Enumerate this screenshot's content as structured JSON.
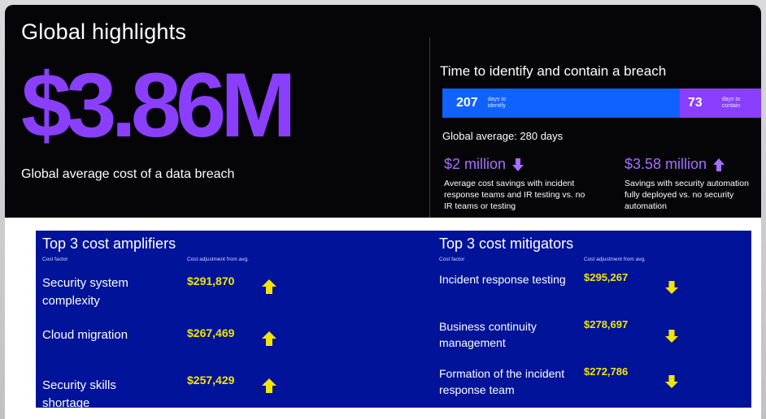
{
  "left": {
    "title": "Global highlights",
    "big_value": "$3.86M",
    "big_label": "Global average cost of a data breach"
  },
  "breach_time": {
    "title": "Time to identify and contain a breach",
    "identify_days": "207",
    "identify_caption": "days to identify",
    "contain_days": "73",
    "contain_caption": "days to contain",
    "identify_fraction": 0.739,
    "global_average": "Global average: 280 days"
  },
  "stats": [
    {
      "value": "$2 million",
      "arrow": "down-arrow-icon",
      "desc": "Average cost savings with incident response teams and IR testing vs. no IR teams or testing"
    },
    {
      "value": "$3.58 million",
      "arrow": "up-arrow-icon",
      "desc": "Savings with security automation fully deployed vs. no security automation"
    }
  ],
  "amplifiers": {
    "title": "Top 3 cost amplifiers",
    "col_factor": "Cost factor",
    "col_adjust": "Cost adjustment from avg.",
    "rows": [
      {
        "label": "Security system complexity",
        "value": "$291,870",
        "arrow": "up-arrow-icon"
      },
      {
        "label": "Cloud migration",
        "value": "$267,469",
        "arrow": "up-arrow-icon"
      },
      {
        "label": "Security skills shortage",
        "value": "$257,429",
        "arrow": "up-arrow-icon"
      }
    ]
  },
  "mitigators": {
    "title": "Top 3 cost mitigators",
    "col_factor": "Cost factor",
    "col_adjust": "Cost adjustment from avg.",
    "rows": [
      {
        "label": "Incident response testing",
        "value": "$295,267",
        "arrow": "down-arrow-icon"
      },
      {
        "label": "Business continuity management",
        "value": "$278,697",
        "arrow": "down-arrow-icon"
      },
      {
        "label": "Formation of the incident response team",
        "value": "$272,786",
        "arrow": "down-arrow-icon"
      }
    ]
  },
  "colors": {
    "purple": "#8a3ffc",
    "blue": "#0f62fe",
    "panel": "#001399",
    "yellow": "#f2e40a"
  }
}
